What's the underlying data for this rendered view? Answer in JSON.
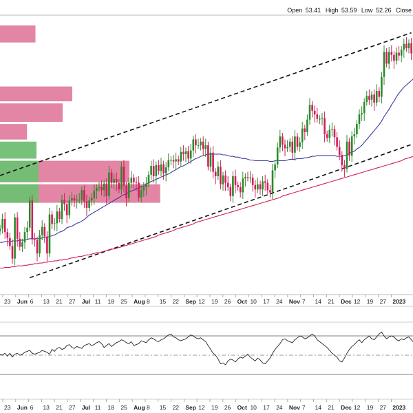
{
  "ohlc": {
    "open_label": "Open",
    "open_value": "53.41",
    "high_label": "High",
    "high_value": "53.59",
    "low_label": "Low",
    "low_value": "52.26",
    "close_label": "Close",
    "close_value": ""
  },
  "chart_data": {
    "type": "line",
    "title": "",
    "xlabel": "",
    "ylabel": "",
    "x_tick_labels": [
      {
        "label": "23",
        "bold": false
      },
      {
        "label": "Jun",
        "bold": true
      },
      {
        "label": "6",
        "bold": false
      },
      {
        "label": "13",
        "bold": false
      },
      {
        "label": "21",
        "bold": false
      },
      {
        "label": "27",
        "bold": false
      },
      {
        "label": "Jul",
        "bold": true
      },
      {
        "label": "11",
        "bold": false
      },
      {
        "label": "18",
        "bold": false
      },
      {
        "label": "25",
        "bold": false
      },
      {
        "label": "Aug",
        "bold": true
      },
      {
        "label": "8",
        "bold": false
      },
      {
        "label": "15",
        "bold": false
      },
      {
        "label": "22",
        "bold": false
      },
      {
        "label": "Sep",
        "bold": true
      },
      {
        "label": "12",
        "bold": false
      },
      {
        "label": "19",
        "bold": false
      },
      {
        "label": "26",
        "bold": false
      },
      {
        "label": "Oct",
        "bold": true
      },
      {
        "label": "10",
        "bold": false
      },
      {
        "label": "17",
        "bold": false
      },
      {
        "label": "24",
        "bold": false
      },
      {
        "label": "Nov",
        "bold": true
      },
      {
        "label": "7",
        "bold": false
      },
      {
        "label": "14",
        "bold": false
      },
      {
        "label": "21",
        "bold": false
      },
      {
        "label": "Dec",
        "bold": true
      },
      {
        "label": "12",
        "bold": false
      },
      {
        "label": "19",
        "bold": false
      },
      {
        "label": "27",
        "bold": false
      },
      {
        "label": "2023",
        "bold": true
      }
    ],
    "colors": {
      "up_candle": "#2a8a2a",
      "down_candle": "#d21e5a",
      "ma_short": "#3a3aa0",
      "ma_long": "#d02050",
      "volume_profile_up": "#6fbf73",
      "volume_profile_down": "#e0789a",
      "trendline": "#111111",
      "oscillator": "#222222"
    },
    "series": [
      {
        "type": "candlestick",
        "values": [
          49,
          50.3,
          48.5,
          47.7,
          46.6,
          44.9,
          50.5,
          47.6,
          46.5,
          47.1,
          48.5,
          49.1,
          52.8,
          47.5,
          47.4,
          45.6,
          48.1,
          49.2,
          47.9,
          45.6,
          50.9,
          49.6,
          49.7,
          51.3,
          50.3,
          52.9,
          52.3,
          50.8,
          52.8,
          53.1,
          52.8,
          52.9,
          52.9,
          54.2,
          52.7,
          51.8,
          52.8,
          53.1,
          54.1,
          54.5,
          54.6,
          54.2,
          55.1,
          53.4,
          56.6,
          55.2,
          55.7,
          55.2,
          54.3,
          57.4,
          54.8,
          53.1,
          55.2,
          55.9,
          55.3,
          55.2,
          53.2,
          54.2,
          54.6,
          55.1,
          56.3,
          57.5,
          56.1,
          57.6,
          56.8,
          57.7,
          56.5,
          57.3,
          58.3,
          58.3,
          58.1,
          58.4,
          58.1,
          59.4,
          59.1,
          59.5,
          58.5,
          59.6,
          61.1,
          60.3,
          60.3,
          60.8,
          59.8,
          60.3,
          57.4,
          59.3,
          56.7,
          56.1,
          57.4,
          55,
          56.2,
          55.2,
          54.6,
          53.4,
          56.1,
          54.9,
          54.6,
          53.9,
          55.8,
          56,
          55.9,
          55.9,
          54.9,
          54.3,
          55,
          54.3,
          55.4,
          55.2,
          54.2,
          53.9,
          56.9,
          57.7,
          60,
          61.5,
          60.4,
          59.9,
          60.1,
          60.8,
          59.3,
          61.5,
          60.1,
          60.7,
          62.6,
          62.1,
          63.8,
          65.8,
          65,
          64.5,
          63.9,
          63.9,
          64,
          61.8,
          61.3,
          62.4,
          62.5,
          61.4,
          60.1,
          59,
          57.6,
          57.1,
          60.8,
          58.9,
          61.5,
          61.8,
          63.2,
          64.5,
          64.7,
          66.2,
          67,
          66.5,
          67.2,
          66.1,
          67.7,
          66.9,
          69.6,
          73,
          71.4,
          73,
          72.6,
          71.8,
          72.9,
          72.5,
          73.3,
          74.1,
          73.5,
          74.2,
          72.8,
          73.4,
          72.2
        ]
      },
      {
        "name": "",
        "type": "line",
        "values": [
          47.1,
          47.1,
          47.2,
          47.2,
          47.2,
          47.3,
          47.3,
          47.3,
          47.4,
          47.4,
          47.4,
          47.5,
          47.6,
          47.6,
          47.6,
          47.6,
          47.6,
          47.7,
          47.8,
          47.8,
          47.9,
          48,
          48.1,
          48.3,
          48.5,
          48.6,
          48.8,
          49.1,
          49.2,
          49.3,
          49.5,
          49.7,
          49.8,
          50,
          50.2,
          50.5,
          50.8,
          51,
          51.2,
          51.4,
          51.6,
          51.8,
          52,
          52.2,
          52.4,
          52.6,
          52.8,
          53,
          53.2,
          53.4,
          53.6,
          53.7,
          53.9,
          54.1,
          54.2,
          54.4,
          54.5,
          54.7,
          54.8,
          55,
          55.2,
          55.4,
          55.5,
          55.7,
          55.8,
          56,
          56.1,
          56.3,
          56.4,
          56.6,
          56.8,
          57,
          57.2,
          57.4,
          57.5,
          57.7,
          57.9,
          58.1,
          58.3,
          58.5,
          58.6,
          58.8,
          58.9,
          59,
          59.1,
          59.1,
          59.1,
          59.1,
          59.1,
          59.1,
          59,
          59,
          58.9,
          58.8,
          58.8,
          58.7,
          58.7,
          58.6,
          58.5,
          58.5,
          58.4,
          58.3,
          58.3,
          58.2,
          58.2,
          58.2,
          58.2,
          58.2,
          58.2,
          58.1,
          58.1,
          58.2,
          58.2,
          58.2,
          58.2,
          58.2,
          58.3,
          58.4,
          58.4,
          58.4,
          58.5,
          58.5,
          58.5,
          58.6,
          58.6,
          58.7,
          58.8,
          58.8,
          58.9,
          58.9,
          58.9,
          58.9,
          58.9,
          58.9,
          58.9,
          58.9,
          58.8,
          58.8,
          58.8,
          58.9,
          59,
          59.2,
          59.4,
          59.5,
          59.8,
          60,
          60.3,
          60.7,
          61.1,
          61.5,
          61.9,
          62.3,
          62.7,
          63.1,
          63.6,
          64.2,
          64.7,
          65.2,
          65.8,
          66.3,
          66.9,
          67.4,
          67.8,
          68.2,
          68.5,
          68.8,
          69.1,
          69.4,
          69.7
        ]
      },
      {
        "name": "",
        "type": "line",
        "values": [
          43.6,
          43.6,
          43.7,
          43.7,
          43.7,
          43.8,
          43.8,
          43.9,
          43.9,
          43.9,
          44,
          44,
          44.1,
          44.1,
          44.2,
          44.2,
          44.3,
          44.3,
          44.4,
          44.4,
          44.5,
          44.5,
          44.6,
          44.6,
          44.7,
          44.7,
          44.8,
          44.8,
          44.9,
          45,
          45,
          45.1,
          45.2,
          45.2,
          45.3,
          45.4,
          45.4,
          45.5,
          45.6,
          45.7,
          45.7,
          45.8,
          45.9,
          46,
          46.1,
          46.2,
          46.2,
          46.3,
          46.4,
          46.5,
          46.6,
          46.7,
          46.8,
          46.9,
          47,
          47.1,
          47.2,
          47.3,
          47.4,
          47.5,
          47.6,
          47.7,
          47.8,
          47.9,
          48.1,
          48.2,
          48.3,
          48.4,
          48.5,
          48.6,
          48.7,
          48.9,
          49,
          49.1,
          49.2,
          49.3,
          49.4,
          49.5,
          49.6,
          49.8,
          49.9,
          50,
          50.1,
          50.2,
          50.3,
          50.4,
          50.5,
          50.6,
          50.7,
          50.8,
          50.9,
          51,
          51.1,
          51.2,
          51.3,
          51.4,
          51.5,
          51.6,
          51.7,
          51.8,
          51.9,
          52,
          52.1,
          52.2,
          52.3,
          52.4,
          52.5,
          52.6,
          52.7,
          52.8,
          52.9,
          53,
          53.1,
          53.2,
          53.4,
          53.5,
          53.6,
          53.7,
          53.8,
          53.9,
          54,
          54.1,
          54.2,
          54.3,
          54.4,
          54.5,
          54.6,
          54.7,
          54.8,
          54.9,
          55,
          55.1,
          55.2,
          55.3,
          55.4,
          55.5,
          55.6,
          55.7,
          55.8,
          55.9,
          56,
          56.1,
          56.2,
          56.3,
          56.4,
          56.5,
          56.6,
          56.7,
          56.8,
          56.9,
          57,
          57.1,
          57.2,
          57.3,
          57.4,
          57.5,
          57.6,
          57.7,
          57.8,
          57.9,
          58,
          58.1,
          58.2,
          58.4,
          58.5,
          58.6,
          58.7,
          58.8,
          58.9
        ]
      },
      {
        "name": "",
        "type": "line",
        "values": [
          51,
          50,
          52,
          49,
          52,
          48,
          51,
          52,
          50,
          51,
          53,
          54,
          55,
          52,
          51,
          52,
          53,
          55,
          54,
          53,
          51,
          56,
          54,
          57,
          58,
          56,
          57,
          60,
          61,
          58,
          57,
          59,
          58,
          57,
          60,
          61,
          62,
          60,
          61,
          63,
          64,
          62,
          58,
          60,
          62,
          59,
          61,
          63,
          64,
          66,
          65,
          63,
          62,
          64,
          60,
          61,
          62,
          65,
          64,
          63,
          66,
          68,
          67,
          65,
          64,
          66,
          67,
          69,
          71,
          72,
          69,
          68,
          66,
          65,
          66,
          67,
          69,
          71,
          70,
          68,
          67,
          68,
          66,
          64,
          60,
          56,
          52,
          50,
          46,
          41,
          42,
          40,
          44,
          46,
          45,
          43,
          46,
          48,
          47,
          49,
          51,
          48,
          46,
          44,
          47,
          45,
          42,
          41,
          44,
          47,
          52,
          56,
          59,
          62,
          66,
          67,
          65,
          64,
          63,
          66,
          68,
          70,
          69,
          67,
          68,
          70,
          72,
          70,
          66,
          64,
          62,
          60,
          58,
          55,
          52,
          50,
          48,
          44,
          43,
          47,
          52,
          56,
          59,
          61,
          64,
          66,
          63,
          66,
          68,
          70,
          67,
          66,
          69,
          72,
          74,
          70,
          67,
          69,
          70,
          69,
          66,
          65,
          67,
          66,
          68,
          69,
          66,
          63,
          61
        ]
      }
    ],
    "trendlines": [
      {
        "name": "",
        "from_index": 0,
        "from_value": 56.2,
        "to_index": 166,
        "to_value": 75.6
      },
      {
        "name": "",
        "from_index": 12,
        "from_value": 42.3,
        "to_index": 166,
        "to_value": 60.4
      }
    ],
    "volume_profile_bars": [
      {
        "price_low": 74.1,
        "price_high": 76.6,
        "relative_length": 0.206,
        "color": "down"
      },
      {
        "price_low": 66.1,
        "price_high": 68.3,
        "relative_length": 0.42,
        "color": "down"
      },
      {
        "price_low": 63.3,
        "price_high": 66.0,
        "relative_length": 0.364,
        "color": "down"
      },
      {
        "price_low": 60.9,
        "price_high": 63.2,
        "relative_length": 0.157,
        "color": "down"
      },
      {
        "price_low": 58.3,
        "price_high": 60.8,
        "relative_length": 0.212,
        "color": "up"
      },
      {
        "price_low": 55.1,
        "price_high": 58.2,
        "relative_length": 0.752,
        "color": "down"
      },
      {
        "price_low": 55.1,
        "price_high": 58.2,
        "relative_length": 0.224,
        "color": "up"
      },
      {
        "price_low": 52.3,
        "price_high": 55.0,
        "relative_length": 0.931,
        "color": "down"
      },
      {
        "price_low": 52.3,
        "price_high": 55.0,
        "relative_length": 0.224,
        "color": "up"
      }
    ],
    "oscillator": {
      "upper_band": 70,
      "lower_band": 30,
      "mid_line": 50
    }
  }
}
